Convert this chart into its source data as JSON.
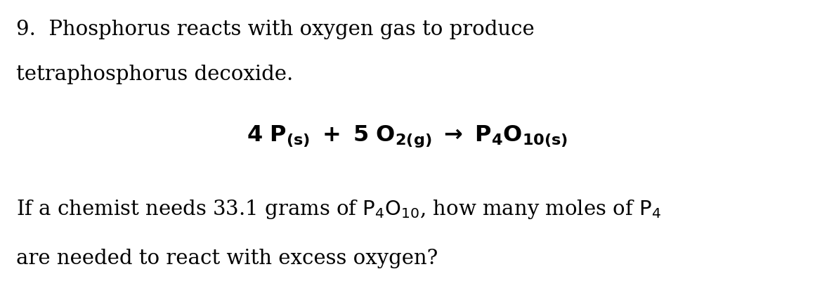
{
  "background_color": "#ffffff",
  "figsize": [
    11.6,
    4.0
  ],
  "dpi": 100,
  "title_line1": "9.  Phosphorus reacts with oxygen gas to produce",
  "title_line2": "tetraphosphorus decoxide.",
  "text_color": "#000000",
  "main_font_size": 21,
  "eq_font_size": 23
}
